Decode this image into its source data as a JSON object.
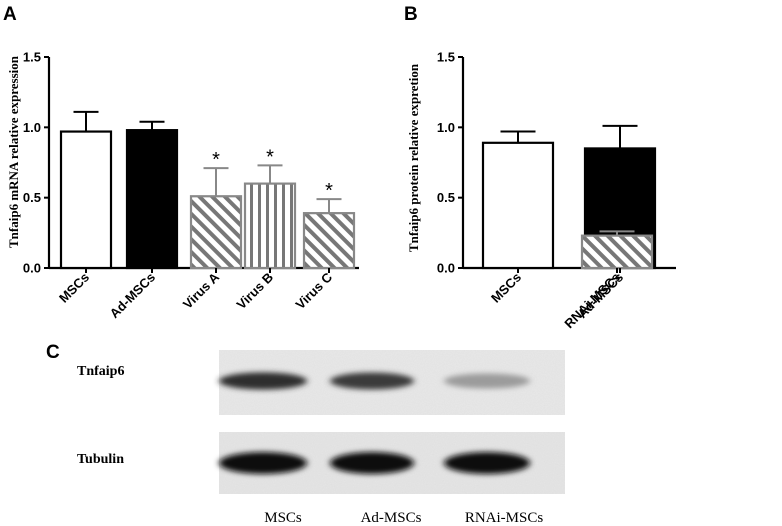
{
  "panels": {
    "a": "A",
    "b": "B",
    "c": "C"
  },
  "colors": {
    "white_bar": "#ffffff",
    "black_bar": "#000000",
    "hatch": "#777777",
    "hatch_edge": "#888888",
    "axis": "#000000"
  },
  "chart_data": [
    {
      "type": "bar",
      "panel": "A",
      "title": "",
      "ylabel": "Tnfaip6 mRNA relative expression",
      "xlabel": "",
      "ylim": [
        0,
        1.5
      ],
      "yticks": [
        "0.0",
        "0.5",
        "1.0",
        "1.5"
      ],
      "categories": [
        "MSCs",
        "Ad-MSCs",
        "Virus A",
        "Virus B",
        "Virus C"
      ],
      "values": [
        0.97,
        0.98,
        0.51,
        0.6,
        0.39
      ],
      "errors": [
        0.14,
        0.06,
        0.2,
        0.13,
        0.1
      ],
      "styles": [
        "white",
        "black",
        "diagonal-hatch",
        "vertical-hatch",
        "diagonal-hatch"
      ],
      "significance": [
        "",
        "",
        "*",
        "*",
        "*"
      ],
      "legend": "none"
    },
    {
      "type": "bar",
      "panel": "B",
      "title": "",
      "ylabel": "Tnfaip6 protein relative expretion",
      "xlabel": "",
      "ylim": [
        0,
        1.5
      ],
      "yticks": [
        "0.0",
        "0.5",
        "1.0",
        "1.5"
      ],
      "categories": [
        "MSCs",
        "Ad-MSCs",
        "RNAi-MSCs"
      ],
      "values": [
        0.89,
        0.85,
        0.23
      ],
      "errors": [
        0.08,
        0.16,
        0.03
      ],
      "styles": [
        "white",
        "black",
        "diagonal-hatch"
      ],
      "significance": [
        "",
        "",
        "*"
      ],
      "legend": "none"
    }
  ],
  "blot": {
    "rows": [
      {
        "label": "Tnfaip6",
        "intensities": [
          0.85,
          0.8,
          0.35
        ]
      },
      {
        "label": "Tubulin",
        "intensities": [
          1.0,
          1.0,
          1.0
        ]
      }
    ],
    "lanes": [
      "MSCs",
      "Ad-MSCs",
      "RNAi-MSCs"
    ]
  }
}
